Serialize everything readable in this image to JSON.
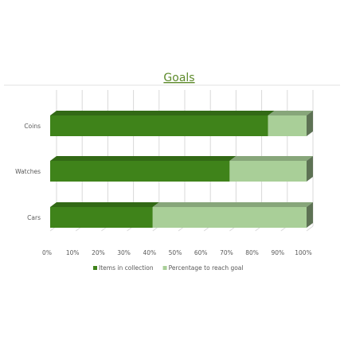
{
  "chart_data": {
    "type": "bar",
    "orientation": "horizontal",
    "stacked": true,
    "percent_stacked": true,
    "three_d": true,
    "title": "Goals",
    "categories": [
      "Coins",
      "Watches",
      "Cars"
    ],
    "x_ticks": [
      "0%",
      "10%",
      "20%",
      "30%",
      "40%",
      "50%",
      "60%",
      "70%",
      "80%",
      "90%",
      "100%"
    ],
    "xlim": [
      0,
      100
    ],
    "grid": true,
    "legend_position": "bottom",
    "series": [
      {
        "name": "Items in collection",
        "values": [
          85,
          70,
          40
        ],
        "color": "#3f831a"
      },
      {
        "name": "Percentage to reach goal",
        "values": [
          15,
          30,
          60
        ],
        "color": "#a9cf98"
      }
    ],
    "colors": {
      "title": "#5e8b2c",
      "axis_text": "#595959",
      "grid": "#d9d9d9",
      "divider": "#e0e0e0"
    }
  }
}
